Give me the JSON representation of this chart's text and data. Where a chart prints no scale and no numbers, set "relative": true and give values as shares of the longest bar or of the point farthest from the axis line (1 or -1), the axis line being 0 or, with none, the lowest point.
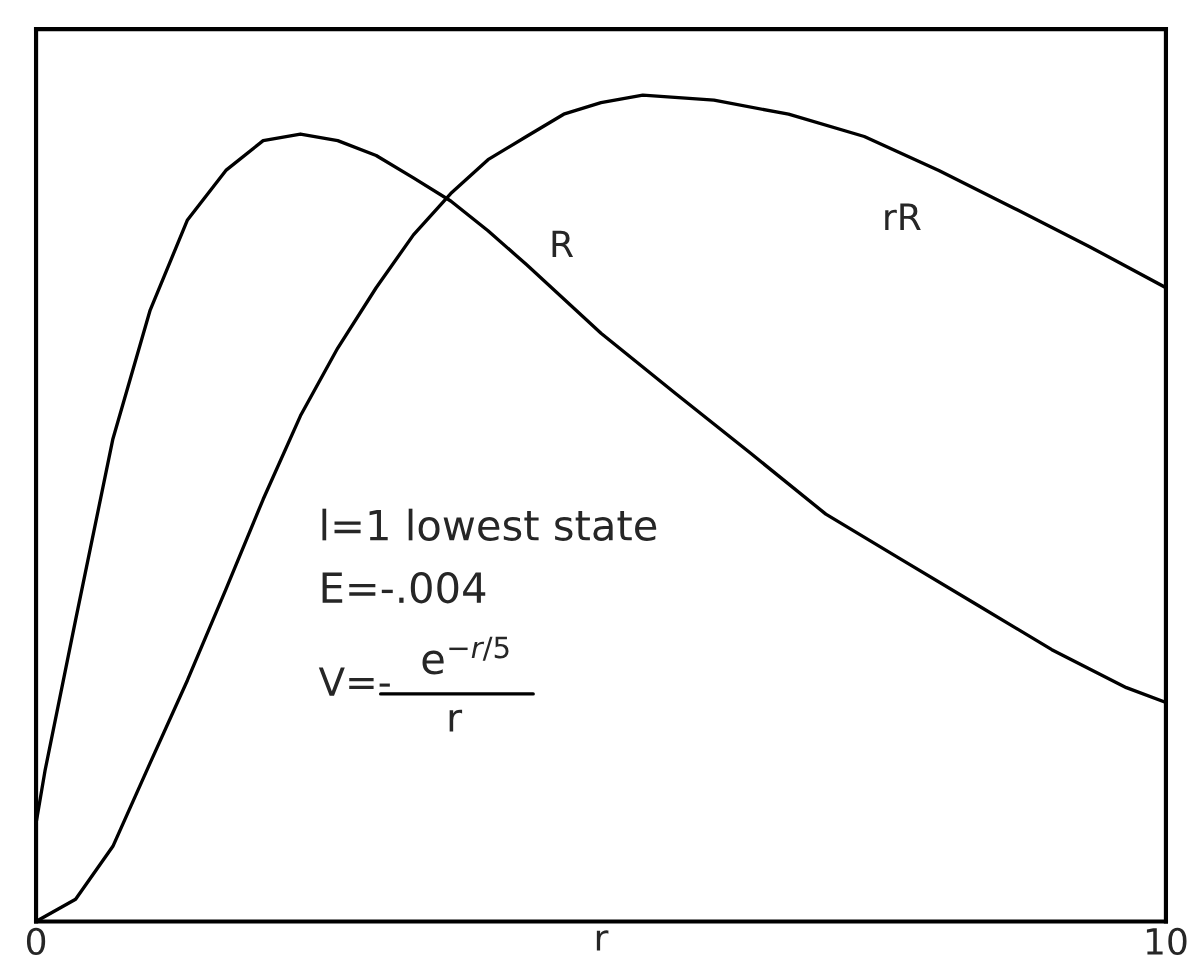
{
  "chart_data": {
    "type": "line",
    "relative": true,
    "xlabel": "r",
    "xlim": [
      0,
      10
    ],
    "xticks": [
      0,
      10
    ],
    "legend": false,
    "marker": "none",
    "line_style": "solid",
    "series": [
      {
        "name": "R",
        "color": "#000000",
        "x": [
          0,
          0.08,
          0.35,
          0.68,
          1.01,
          1.34,
          1.68,
          2.01,
          2.34,
          2.67,
          3.01,
          3.34,
          3.67,
          4.0,
          4.34,
          5.0,
          5.66,
          6.33,
          6.99,
          7.66,
          8.32,
          8.99,
          9.65,
          10
        ],
        "values": [
          0.119,
          0.183,
          0.365,
          0.584,
          0.74,
          0.849,
          0.909,
          0.945,
          0.953,
          0.945,
          0.927,
          0.9,
          0.872,
          0.836,
          0.795,
          0.712,
          0.639,
          0.566,
          0.493,
          0.438,
          0.384,
          0.329,
          0.283,
          0.265
        ]
      },
      {
        "name": "rR",
        "color": "#000000",
        "x": [
          0,
          0.35,
          0.68,
          1.01,
          1.34,
          1.68,
          2.01,
          2.34,
          2.67,
          3.01,
          3.34,
          3.67,
          4.0,
          4.34,
          4.67,
          5.0,
          5.37,
          6.0,
          6.66,
          7.33,
          7.99,
          8.66,
          9.32,
          10
        ],
        "values": [
          0,
          0.027,
          0.091,
          0.192,
          0.292,
          0.402,
          0.511,
          0.612,
          0.694,
          0.767,
          0.831,
          0.881,
          0.922,
          0.95,
          0.977,
          0.991,
          1.0,
          0.994,
          0.977,
          0.95,
          0.909,
          0.863,
          0.817,
          0.767
        ]
      }
    ],
    "annotations": [
      "l=1 lowest state",
      "E=-.004",
      "V=-",
      "e$^{−r/5}$",
      "r"
    ]
  }
}
